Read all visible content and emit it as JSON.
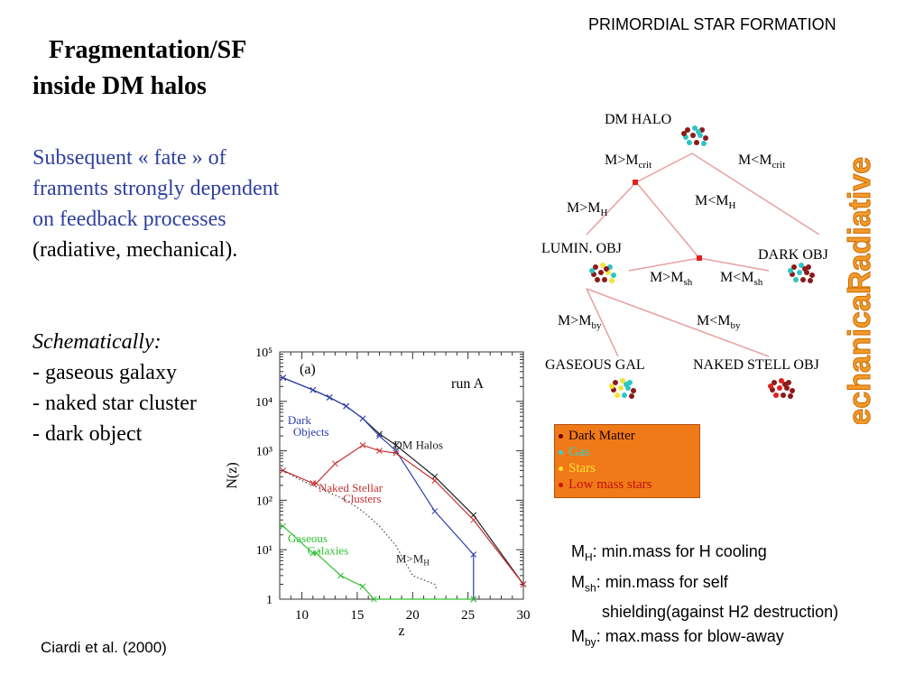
{
  "header": {
    "section_label": "PRIMORDIAL STAR FORMATION"
  },
  "title": {
    "line1": "Fragmentation/SF",
    "line2": "inside DM halos"
  },
  "paragraph": {
    "blue_text": "Subsequent « fate » of framents strongly dependent on feedback processes",
    "black_text": " (radiative, mechanical)."
  },
  "schematic": {
    "heading": "Schematically:",
    "items": [
      "- gaseous galaxy",
      "- naked star cluster",
      "- dark object"
    ]
  },
  "citation": "Ciardi et al. (2000)",
  "definitions": [
    {
      "sym": "M",
      "sub": "H",
      "text": ": min.mass for H cooling"
    },
    {
      "sym": "M",
      "sub": "sh",
      "text": ": min.mass for self"
    },
    {
      "sym": "",
      "sub": "",
      "text": "shielding(against H2 destruction)"
    },
    {
      "sym": "M",
      "sub": "by",
      "text": ": max.mass for blow-away"
    }
  ],
  "tree": {
    "dm_halo": "DM HALO",
    "m_gt_crit": "M>M",
    "m_lt_crit": "M<M",
    "crit_sub": "crit",
    "m_gt_h": "M>M",
    "m_lt_h": "M<M",
    "h_sub": "H",
    "lumin_obj": "LUMIN. OBJ",
    "dark_obj": "DARK OBJ",
    "m_gt_sh": "M>M",
    "m_lt_sh": "M<M",
    "sh_sub": "sh",
    "m_gt_by": "M>M",
    "m_lt_by": "M<M",
    "by_sub": "by",
    "gaseous_gal": "GASEOUS GAL",
    "naked_stell_obj": "NAKED STELL OBJ",
    "radiative": "Radiative",
    "mechanical": "Mechanical",
    "colors": {
      "dark_matter": "#8b1a1a",
      "gas": "#2ec4c4",
      "stars": "#f4e23a",
      "low_mass": "#e02020",
      "line": "#e8a0a0"
    }
  },
  "legend": [
    {
      "label": "Dark Matter",
      "color": "#6b0000",
      "text_color": "#1a0000"
    },
    {
      "label": "Gas",
      "color": "#30d0d0",
      "text_color": "#30d0d0"
    },
    {
      "label": "Stars",
      "color": "#ffe030",
      "text_color": "#ffe030"
    },
    {
      "label": "Low mass stars",
      "color": "#d01010",
      "text_color": "#c01010"
    }
  ],
  "chart_data": {
    "type": "line",
    "panel_label": "(a)",
    "run_label": "run A",
    "xlabel": "z",
    "ylabel": "N(z)",
    "log_y": true,
    "xlim": [
      8,
      30
    ],
    "ylim": [
      1,
      100000
    ],
    "x_ticks": [
      "10",
      "15",
      "20",
      "25",
      "30"
    ],
    "y_ticks": [
      "1",
      "10¹",
      "10²",
      "10³",
      "10⁴",
      "10⁵"
    ],
    "series": [
      {
        "name": "DM Halos",
        "color": "#222222",
        "style": "solid",
        "x": [
          8.3,
          11,
          12.5,
          14,
          15.5,
          17,
          18.5,
          22,
          25.5,
          30
        ],
        "y": [
          30000,
          17000,
          12000,
          8000,
          4500,
          2200,
          1300,
          300,
          50,
          2
        ]
      },
      {
        "name": "Dark Objects",
        "color": "#2a3db0",
        "style": "solid",
        "x": [
          8.3,
          11,
          12.5,
          14,
          15.5,
          17,
          18.5,
          22,
          25.5,
          25.5
        ],
        "y": [
          30000,
          17000,
          12000,
          8000,
          4500,
          2000,
          1000,
          60,
          8,
          1
        ]
      },
      {
        "name": "Naked Stellar Clusters",
        "color": "#c83030",
        "style": "solid",
        "x": [
          8.3,
          11,
          11.3,
          13,
          15.5,
          17,
          18.5,
          22,
          25.5,
          30
        ],
        "y": [
          400,
          220,
          220,
          550,
          1300,
          1000,
          900,
          250,
          40,
          2
        ]
      },
      {
        "name": "Gaseous Galaxies",
        "color": "#30c030",
        "style": "solid",
        "x": [
          8.3,
          11,
          11.3,
          13.5,
          15.5,
          16.5,
          25.5
        ],
        "y": [
          30,
          8.5,
          8.5,
          3,
          1.8,
          1,
          1
        ]
      },
      {
        "name": "M>M",
        "name_sub": "H",
        "color": "#444444",
        "style": "dotted",
        "x": [
          8.3,
          10,
          12,
          14,
          15.5,
          17,
          18.5,
          20,
          22,
          22.2
        ],
        "y": [
          400,
          250,
          160,
          100,
          60,
          30,
          12,
          3,
          2,
          1.5
        ]
      }
    ],
    "annotations": [
      "Dark",
      "Objects",
      "DM Halos",
      "Naked Stellar",
      "Clusters",
      "Gaseous",
      "Galaxies"
    ]
  }
}
